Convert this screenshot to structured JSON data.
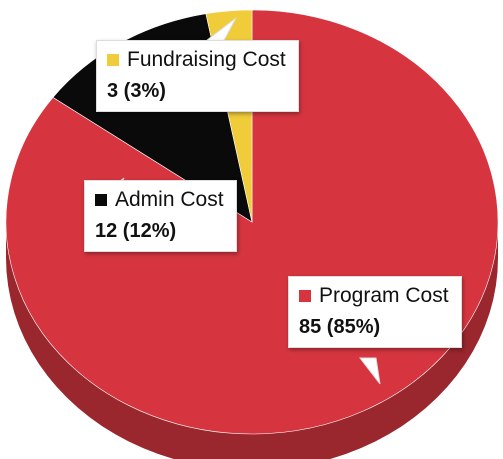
{
  "chart_data": {
    "type": "pie",
    "series": [
      {
        "name": "Program Cost",
        "value": 85,
        "percent": "85%",
        "color": "#d63540",
        "display_value": "85 (85%)"
      },
      {
        "name": "Admin Cost",
        "value": 12,
        "percent": "12%",
        "color": "#0a0a0a",
        "display_value": "12 (12%)"
      },
      {
        "name": "Fundraising Cost",
        "value": 3,
        "percent": "3%",
        "color": "#f0cc3a",
        "display_value": "3 (3%)"
      }
    ]
  }
}
